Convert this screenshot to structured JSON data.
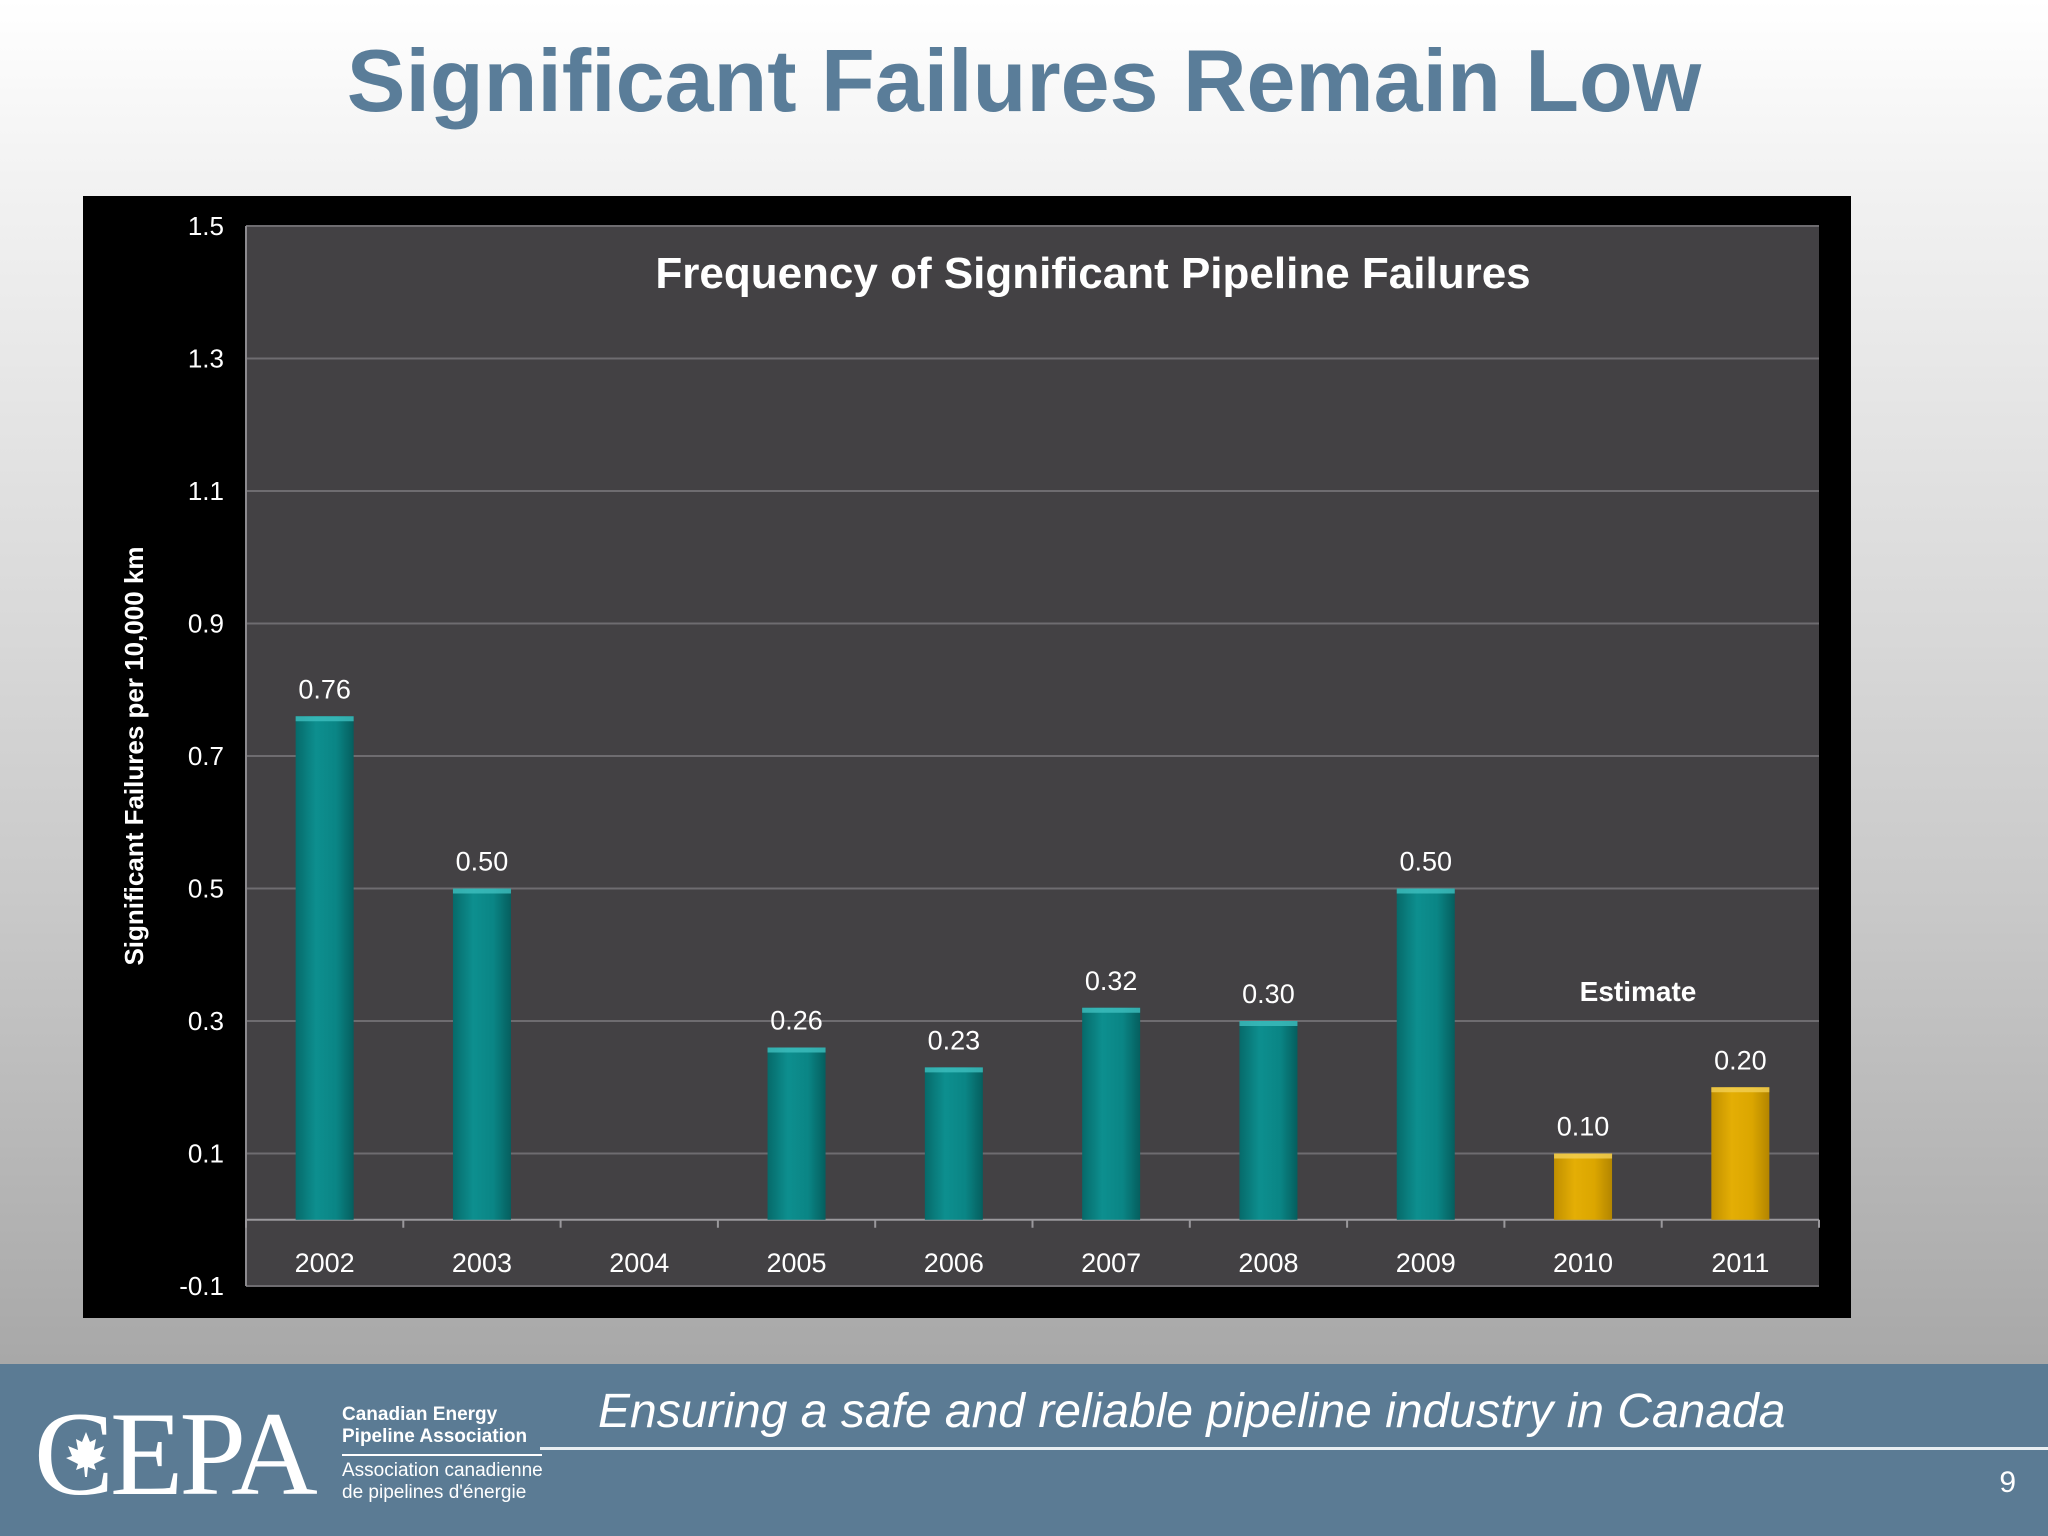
{
  "slide": {
    "title": "Significant Failures Remain Low",
    "page_number": "9"
  },
  "footer": {
    "tagline": "Ensuring a safe and reliable pipeline industry in Canada",
    "logo": {
      "mark": "CEPA",
      "name_en_line1": "Canadian Energy",
      "name_en_line2": "Pipeline Association",
      "name_fr_line1": "Association canadienne",
      "name_fr_line2": "de pipelines d'énergie"
    }
  },
  "colors": {
    "title": "#5a7d99",
    "plot_bg": "#434144",
    "frame_bg": "#000000",
    "actual_bar": "#0a8585",
    "estimate_bar": "#dba600",
    "footer_bg": "#5b7b94"
  },
  "chart_data": {
    "type": "bar",
    "title": "Frequency of Significant Pipeline Failures",
    "ylabel": "Significant Failures per 10,000 km",
    "xlabel": "",
    "ylim": [
      -0.1,
      1.5
    ],
    "yticks": [
      "1.5",
      "1.3",
      "1.1",
      "0.9",
      "0.7",
      "0.5",
      "0.3",
      "0.1",
      "-0.1"
    ],
    "ytick_values": [
      1.5,
      1.3,
      1.1,
      0.9,
      0.7,
      0.5,
      0.3,
      0.1,
      -0.1
    ],
    "grid": true,
    "categories": [
      "2002",
      "2003",
      "2004",
      "2005",
      "2006",
      "2007",
      "2008",
      "2009",
      "2010",
      "2011"
    ],
    "values": [
      0.76,
      0.5,
      0,
      0.26,
      0.23,
      0.32,
      0.3,
      0.5,
      0.1,
      0.2
    ],
    "value_labels": [
      "0.76",
      "0.50",
      "",
      "0.26",
      "0.23",
      "0.32",
      "0.30",
      "0.50",
      "0.10",
      "0.20"
    ],
    "estimate": [
      false,
      false,
      false,
      false,
      false,
      false,
      false,
      false,
      true,
      true
    ],
    "annotation": "Estimate"
  }
}
